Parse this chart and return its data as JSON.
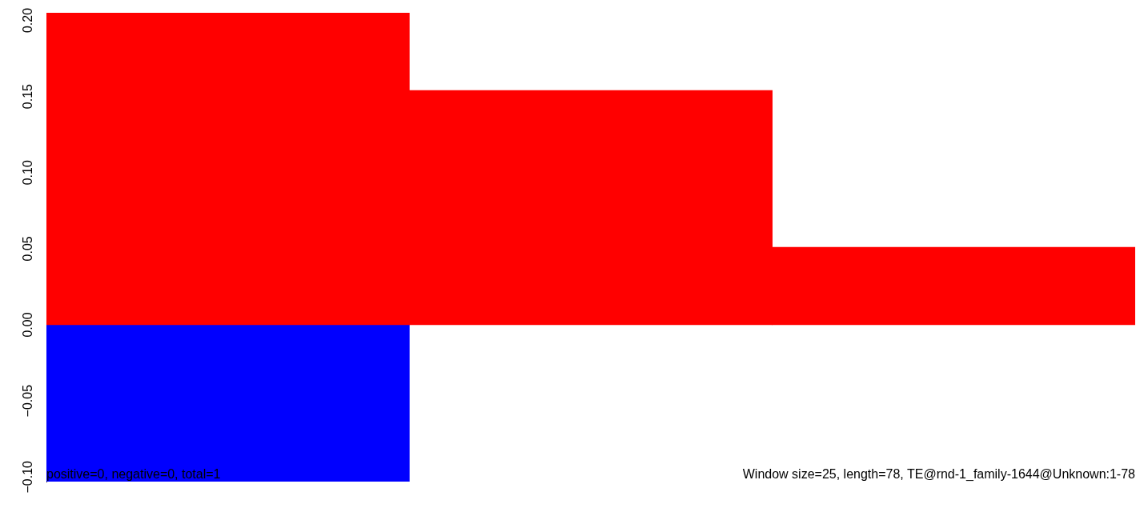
{
  "chart_data": {
    "type": "bar",
    "stacked": true,
    "categories": [
      null,
      null,
      null
    ],
    "series": [
      {
        "color": "#ff0000",
        "values": [
          0.205,
          0.154,
          0.051
        ]
      },
      {
        "color": "#0000ff",
        "values": [
          -0.103,
          null,
          null
        ]
      }
    ],
    "ylim": [
      -0.103,
      0.205
    ],
    "yticks": [
      {
        "value": -0.1,
        "label": "−0.10"
      },
      {
        "value": -0.05,
        "label": "−0.05"
      },
      {
        "value": 0,
        "label": "0.00"
      },
      {
        "value": 0.05,
        "label": "0.05"
      },
      {
        "value": 0.1,
        "label": "0.10"
      },
      {
        "value": 0.15,
        "label": "0.15"
      },
      {
        "value": 0.2,
        "label": "0.20"
      }
    ],
    "grid": false,
    "tick_labels": "y",
    "annotations": [
      "positive=0, negative=0, total=1",
      "Window size=25, length=78, TE@rnd-1_family-1644@Unknown:1-78"
    ]
  }
}
